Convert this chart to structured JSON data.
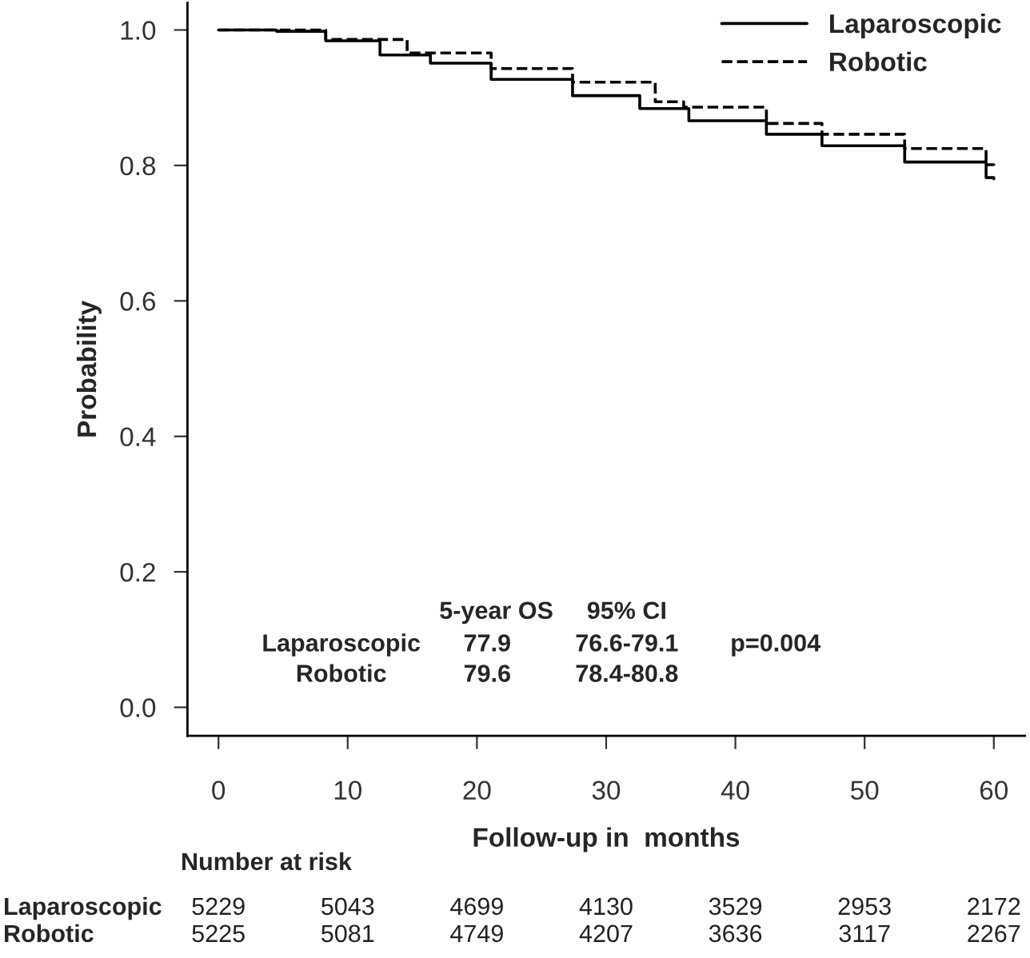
{
  "chart_data": {
    "type": "step",
    "xlabel": "Follow-up in  months",
    "ylabel": "Probability",
    "x": [
      0,
      4.5,
      8.3,
      12.5,
      16.4,
      21.1,
      27.4,
      32.6,
      36.4,
      42.4,
      46.7,
      53.1,
      59.4,
      60
    ],
    "series": [
      {
        "name": "Laparoscopic",
        "color": "#000000",
        "line_style": "solid",
        "values": [
          1.0,
          0.998,
          0.984,
          0.963,
          0.951,
          0.927,
          0.903,
          0.884,
          0.866,
          0.846,
          0.829,
          0.805,
          0.782,
          0.78
        ]
      },
      {
        "name": "Robotic",
        "color": "#000000",
        "line_style": "dashed",
        "x": [
          0,
          2.7,
          8.3,
          14.6,
          21.1,
          27.4,
          33.8,
          36.0,
          42.4,
          46.7,
          53.1,
          59.4,
          60
        ],
        "values": [
          1.0,
          1.0,
          0.986,
          0.966,
          0.943,
          0.923,
          0.894,
          0.886,
          0.862,
          0.846,
          0.825,
          0.801,
          0.8
        ]
      }
    ],
    "xlim": [
      -2.4,
      62.4
    ],
    "ylim": [
      -0.042,
      1.04
    ],
    "xticks": [
      0,
      10,
      20,
      30,
      40,
      50,
      60
    ],
    "yticks": [
      {
        "value": 0,
        "label": "0.0"
      },
      {
        "value": 0.2,
        "label": "0.2"
      },
      {
        "value": 0.4,
        "label": "0.4"
      },
      {
        "value": 0.6,
        "label": "0.6"
      },
      {
        "value": 0.8,
        "label": "0.8"
      },
      {
        "value": 1.0,
        "label": "1.0"
      }
    ],
    "grid": false,
    "legend": "top right",
    "annotations": [
      "5-year OS",
      "95% CI",
      "Laparoscopic",
      "77.9",
      "76.6-79.1",
      "p=0.004",
      "Robotic",
      "79.6",
      "78.4-80.8",
      "Number at risk",
      "Laparoscopic",
      "5229",
      "5043",
      "4699",
      "4130",
      "3529",
      "2953",
      "2172",
      "Robotic",
      "5225",
      "5081",
      "4749",
      "4207",
      "3636",
      "3117",
      "2267"
    ]
  }
}
